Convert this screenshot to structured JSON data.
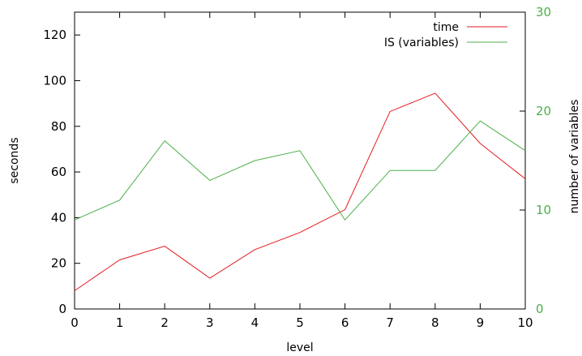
{
  "chart_data": {
    "type": "line",
    "x": [
      0,
      1,
      2,
      3,
      4,
      5,
      6,
      7,
      8,
      9,
      10
    ],
    "xlabel": "level",
    "ylabel": "seconds",
    "y2label": "number of variables",
    "xlim": [
      0,
      10
    ],
    "ylim": [
      0,
      130
    ],
    "y2lim": [
      0,
      30
    ],
    "xticks": [
      "0",
      "1",
      "2",
      "3",
      "4",
      "5",
      "6",
      "7",
      "8",
      "9",
      "10"
    ],
    "yticks": [
      "0",
      "20",
      "40",
      "60",
      "80",
      "100",
      "120"
    ],
    "y2ticks": [
      "0",
      "10",
      "20",
      "30"
    ],
    "grid": false,
    "legend_position": "top-right",
    "series": [
      {
        "name": "time",
        "axis": "left",
        "color": "#e41a1c",
        "values": [
          8,
          21.5,
          27.5,
          13.5,
          26,
          33.5,
          43.5,
          86.5,
          94.5,
          72.5,
          57
        ]
      },
      {
        "name": "IS (variables)",
        "axis": "right",
        "color": "#4daf4a",
        "values": [
          9,
          11,
          17,
          13,
          15,
          16,
          9,
          14,
          14,
          19,
          16
        ]
      }
    ],
    "colors": {
      "axis": "#000000",
      "right_axis_text": "#4daf4a"
    }
  }
}
